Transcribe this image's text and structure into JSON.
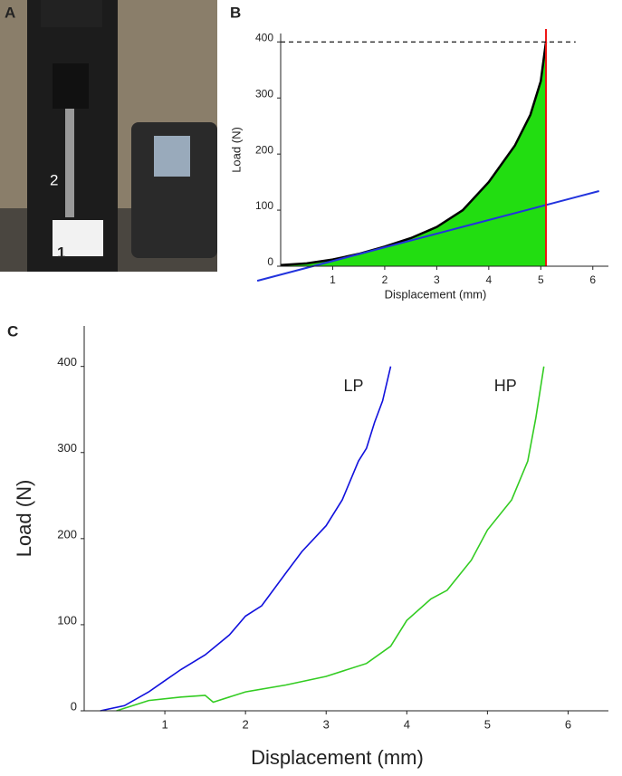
{
  "photo": {
    "panel": "A",
    "labels": [
      "2",
      "1"
    ]
  },
  "chart_data": [
    {
      "type": "line",
      "panel": "B",
      "xlabel": "Displacement (mm)",
      "ylabel": "Load (N)",
      "xlim": [
        0,
        6.3
      ],
      "ylim": [
        0,
        415
      ],
      "xticks": [
        1,
        2,
        3,
        4,
        5,
        6
      ],
      "yticks": [
        0,
        100,
        200,
        300,
        400
      ],
      "series": [
        {
          "color": "#000000",
          "fill": "#22dd11",
          "x": [
            0,
            0.5,
            1,
            1.5,
            2,
            2.5,
            3,
            3.5,
            4,
            4.5,
            4.8,
            5,
            5.1
          ],
          "values": [
            2,
            5,
            12,
            22,
            35,
            50,
            70,
            100,
            150,
            215,
            270,
            330,
            400
          ]
        },
        {
          "color": "#2233dd",
          "x": [
            -0.45,
            6.12
          ],
          "values": [
            -26,
            134
          ]
        }
      ],
      "reference_lines": [
        {
          "x": 5.1,
          "color": "#ee1111"
        },
        {
          "y": 400,
          "color": "#000000",
          "style": "dashed"
        }
      ]
    },
    {
      "type": "line",
      "panel": "C",
      "xlabel": "Displacement (mm)",
      "ylabel": "Load (N)",
      "xlim": [
        0,
        6.5
      ],
      "ylim": [
        0,
        447
      ],
      "xticks": [
        1,
        2,
        3,
        4,
        5,
        6
      ],
      "yticks": [
        0,
        100,
        200,
        300,
        400
      ],
      "series": [
        {
          "name": "LP",
          "color": "#1111dd",
          "x": [
            0.2,
            0.5,
            0.8,
            1,
            1.2,
            1.5,
            1.8,
            2,
            2.2,
            2.5,
            2.7,
            3,
            3.2,
            3.4,
            3.5,
            3.6,
            3.7,
            3.8
          ],
          "values": [
            0,
            6,
            22,
            35,
            48,
            65,
            88,
            110,
            122,
            160,
            185,
            215,
            245,
            290,
            305,
            335,
            360,
            400
          ]
        },
        {
          "name": "HP",
          "color": "#33cc22",
          "x": [
            0.4,
            0.8,
            1.2,
            1.5,
            1.6,
            2,
            2.5,
            3,
            3.5,
            3.8,
            4,
            4.3,
            4.5,
            4.8,
            5,
            5.3,
            5.5,
            5.6,
            5.7
          ],
          "values": [
            0,
            12,
            16,
            18,
            10,
            22,
            30,
            40,
            55,
            75,
            105,
            130,
            140,
            175,
            210,
            245,
            290,
            340,
            400
          ]
        }
      ]
    }
  ]
}
